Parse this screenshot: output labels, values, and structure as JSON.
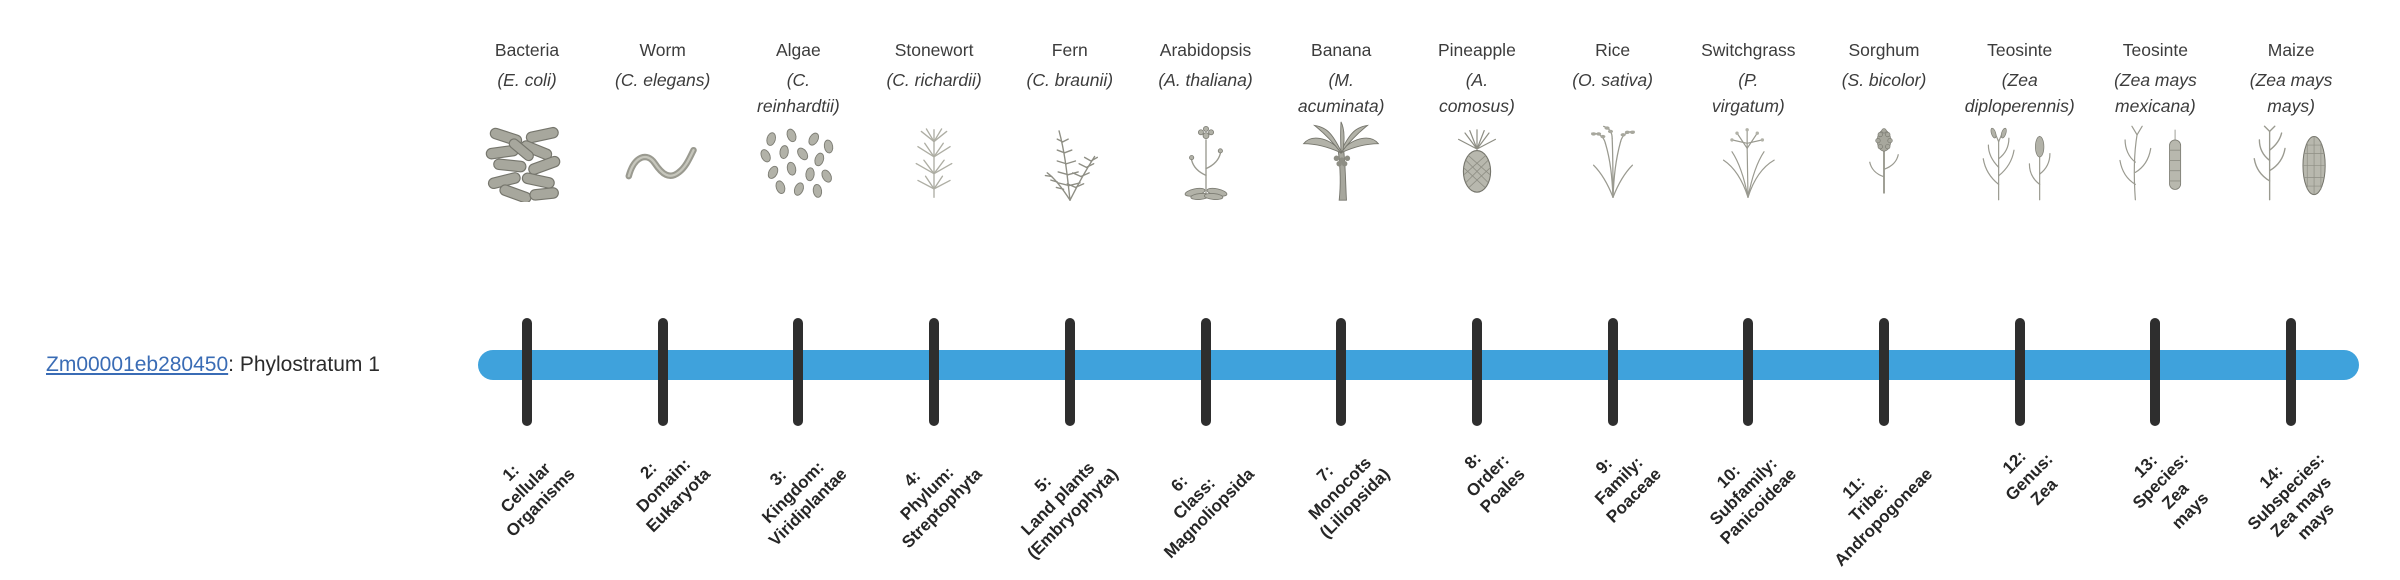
{
  "gene": {
    "id": "Zm00001eb280450",
    "suffix": ": Phylostratum 1"
  },
  "colors": {
    "bar": "#3FA2DC",
    "tick": "#2E2E2E",
    "link": "#3A6CB5",
    "text": "#3B3B3B"
  },
  "strata": [
    {
      "organism": "Bacteria",
      "scientific": "(E. coli)",
      "icon": "bacteria-icon",
      "level": "1:\nCellular\nOrganisms"
    },
    {
      "organism": "Worm",
      "scientific": "(C. elegans)",
      "icon": "worm-icon",
      "level": "2:\nDomain:\nEukaryota"
    },
    {
      "organism": "Algae",
      "scientific": "(C.\nreinhardtii)",
      "icon": "algae-icon",
      "level": "3:\nKingdom:\nViridiplantae"
    },
    {
      "organism": "Stonewort",
      "scientific": "(C. richardii)",
      "icon": "stonewort-icon",
      "level": "4:\nPhylum:\nStreptophyta"
    },
    {
      "organism": "Fern",
      "scientific": "(C. braunii)",
      "icon": "fern-icon",
      "level": "5:\nLand plants\n(Embryophyta)"
    },
    {
      "organism": "Arabidopsis",
      "scientific": "(A. thaliana)",
      "icon": "arabidopsis-icon",
      "level": "6:\nClass:\nMagnoliopsida"
    },
    {
      "organism": "Banana",
      "scientific": "(M.\nacuminata)",
      "icon": "banana-icon",
      "level": "7:\nMonocots\n(Liliopsida)"
    },
    {
      "organism": "Pineapple",
      "scientific": "(A.\ncomosus)",
      "icon": "pineapple-icon",
      "level": "8:\nOrder:\nPoales"
    },
    {
      "organism": "Rice",
      "scientific": "(O. sativa)",
      "icon": "rice-icon",
      "level": "9:\nFamily:\nPoaceae"
    },
    {
      "organism": "Switchgrass",
      "scientific": "(P.\nvirgatum)",
      "icon": "switchgrass-icon",
      "level": "10:\nSubfamily:\nPanicoideae"
    },
    {
      "organism": "Sorghum",
      "scientific": "(S. bicolor)",
      "icon": "sorghum-icon",
      "level": "11:\nTribe:\nAndropogoneae"
    },
    {
      "organism": "Teosinte",
      "scientific": "(Zea\ndiploperennis)",
      "icon": "teosinte-diploperennis-icon",
      "level": "12:\nGenus:\nZea"
    },
    {
      "organism": "Teosinte",
      "scientific": "(Zea mays\nmexicana)",
      "icon": "teosinte-mexicana-icon",
      "level": "13:\nSpecies:\nZea\nmays"
    },
    {
      "organism": "Maize",
      "scientific": "(Zea mays\nmays)",
      "icon": "maize-icon",
      "level": "14:\nSubspecies:\nZea mays\nmays"
    }
  ]
}
